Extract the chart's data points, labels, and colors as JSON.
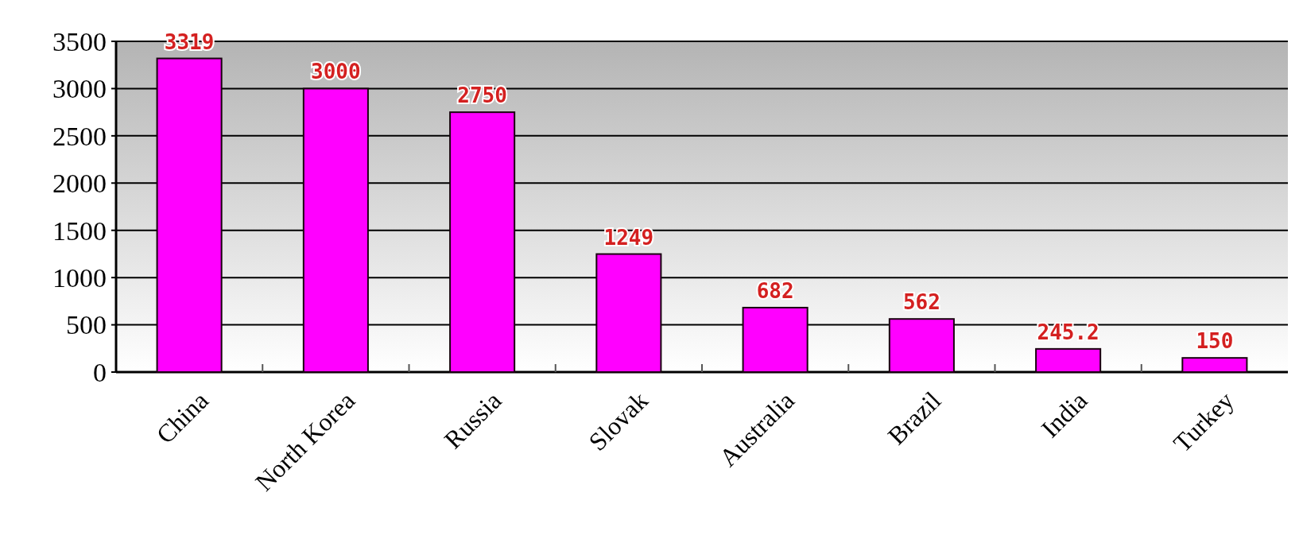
{
  "chart_data": {
    "type": "bar",
    "categories": [
      "China",
      "North Korea",
      "Russia",
      "Slovak",
      "Australia",
      "Brazil",
      "India",
      "Turkey"
    ],
    "values": [
      3319,
      3000,
      2750,
      1249,
      682,
      562,
      245.2,
      150
    ],
    "color": "#ff00ff",
    "data_labels": true,
    "grid": "y",
    "ylim": [
      0,
      3500
    ],
    "yticks": [
      0,
      500,
      1000,
      1500,
      2000,
      2500,
      3000,
      3500
    ]
  }
}
